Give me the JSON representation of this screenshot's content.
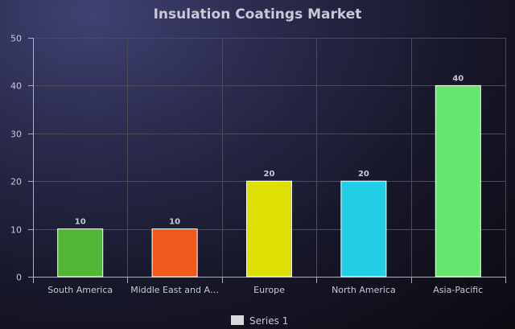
{
  "chart_data": {
    "type": "bar",
    "title": "Insulation Coatings Market",
    "xlabel": "",
    "ylabel": "",
    "categories": [
      "South America",
      "Middle East and Africa",
      "Europe",
      "North America",
      "Asia-Pacific"
    ],
    "category_labels_shown": [
      "South America",
      "Middle East and A…",
      "Europe",
      "North America",
      "Asia-Pacific"
    ],
    "series": [
      {
        "name": "Series 1",
        "values": [
          10,
          10,
          20,
          20,
          40
        ],
        "colors": [
          "#52b734",
          "#ee5a1c",
          "#dde000",
          "#24cde6",
          "#66e66f"
        ]
      }
    ],
    "ylim": [
      0,
      50
    ],
    "yticks": [
      0,
      10,
      20,
      30,
      40,
      50
    ],
    "data_labels": [
      "10",
      "10",
      "20",
      "20",
      "40"
    ],
    "grid": true,
    "legend": {
      "position": "bottom",
      "swatch_color": "#d9d9d9"
    }
  }
}
